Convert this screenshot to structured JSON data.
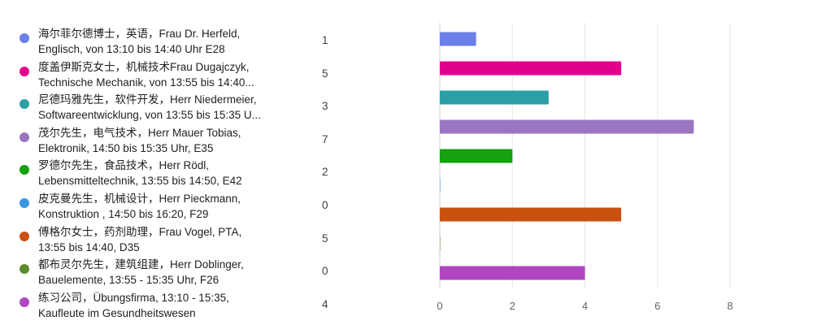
{
  "chart_data": {
    "type": "bar",
    "orientation": "horizontal",
    "title": "",
    "xlabel": "",
    "ylabel": "",
    "xlim": [
      0,
      8
    ],
    "x_ticks": [
      0,
      2,
      4,
      6,
      8
    ],
    "grid": true,
    "legend_position": "left",
    "categories": [
      [
        "海尔菲尔德博士，英语，Frau Dr. Herfeld,",
        "Englisch, von 13:10 bis 14:40 Uhr E28"
      ],
      [
        "度盖伊斯克女士，机械技术Frau Dugajczyk,",
        "Technische Mechanik, von 13:55 bis 14:40..."
      ],
      [
        "尼德玛雅先生，软件开发，Herr Niedermeier,",
        "Softwareentwicklung, von 13:55 bis 15:35 U..."
      ],
      [
        "茂尔先生，电气技术，Herr Mauer Tobias,",
        "Elektronik, 14:50 bis 15:35 Uhr, E35"
      ],
      [
        "罗德尔先生，食品技术，Herr Rödl,",
        "Lebensmitteltechnik, 13:55 bis 14:50, E42"
      ],
      [
        "皮克曼先生，机械设计，Herr Pieckmann,",
        "Konstruktion , 14:50 bis 16:20, F29"
      ],
      [
        "傅格尔女士，药剂助理，Frau Vogel, PTA,",
        "13:55 bis 14:40, D35"
      ],
      [
        "都布灵尔先生，建筑组建，Herr Doblinger,",
        "Bauelemente, 13:55 - 15:35 Uhr, F26"
      ],
      [
        "练习公司，Übungsfirma, 13:10 - 15:35,",
        "Kaufleute im Gesundheitswesen"
      ]
    ],
    "values": [
      1,
      5,
      3,
      7,
      2,
      0,
      5,
      0,
      4
    ],
    "value_labels": [
      "1",
      "5",
      "3",
      "7",
      "2",
      "0",
      "5",
      "0",
      "4"
    ],
    "colors": [
      "#6a7fe8",
      "#e3008c",
      "#2ba0a4",
      "#9a76c1",
      "#13a10e",
      "#3a96dd",
      "#ca5010",
      "#5b8c2a",
      "#b146c2"
    ]
  }
}
